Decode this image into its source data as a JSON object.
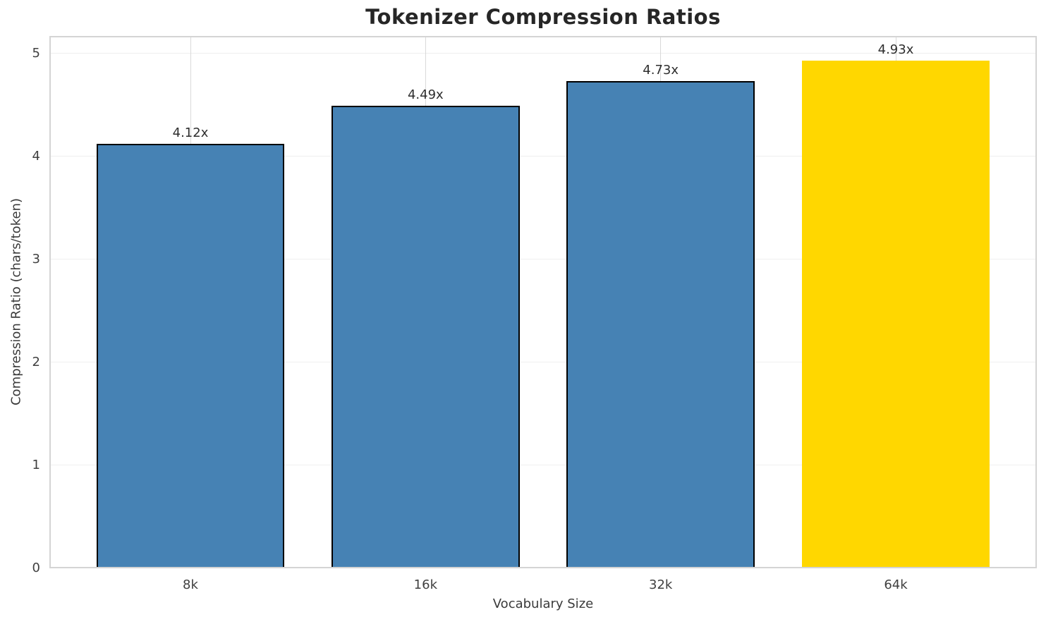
{
  "chart_data": {
    "type": "bar",
    "title": "Tokenizer Compression Ratios",
    "xlabel": "Vocabulary Size",
    "ylabel": "Compression Ratio (chars/token)",
    "categories": [
      "8k",
      "16k",
      "32k",
      "64k"
    ],
    "values": [
      4.12,
      4.49,
      4.73,
      4.93
    ],
    "bar_labels": [
      "4.12x",
      "4.49x",
      "4.73x",
      "4.93x"
    ],
    "bar_colors": [
      "#4682B4",
      "#4682B4",
      "#4682B4",
      "#FFD700"
    ],
    "bar_edge_colors": [
      "#000000",
      "#000000",
      "#000000",
      null
    ],
    "yticks": [
      0,
      1,
      2,
      3,
      4,
      5
    ],
    "ylim": [
      0,
      5.17
    ],
    "xlim_units": [
      -0.6,
      3.6
    ],
    "bar_width_units": 0.8,
    "grid": true,
    "grid_orientation": "both",
    "legend": "none",
    "highlight_category": "64k"
  },
  "colors": {
    "bar_default": "#4682B4",
    "bar_highlight": "#FFD700",
    "bar_edge": "#000000",
    "grid_horizontal": "#efefef",
    "grid_vertical": "#d9d9d9",
    "spine": "#d4d4d4",
    "title_text": "#262626",
    "tick_text": "#404040",
    "axis_label_text": "#3a3a3a",
    "background": "#ffffff"
  }
}
